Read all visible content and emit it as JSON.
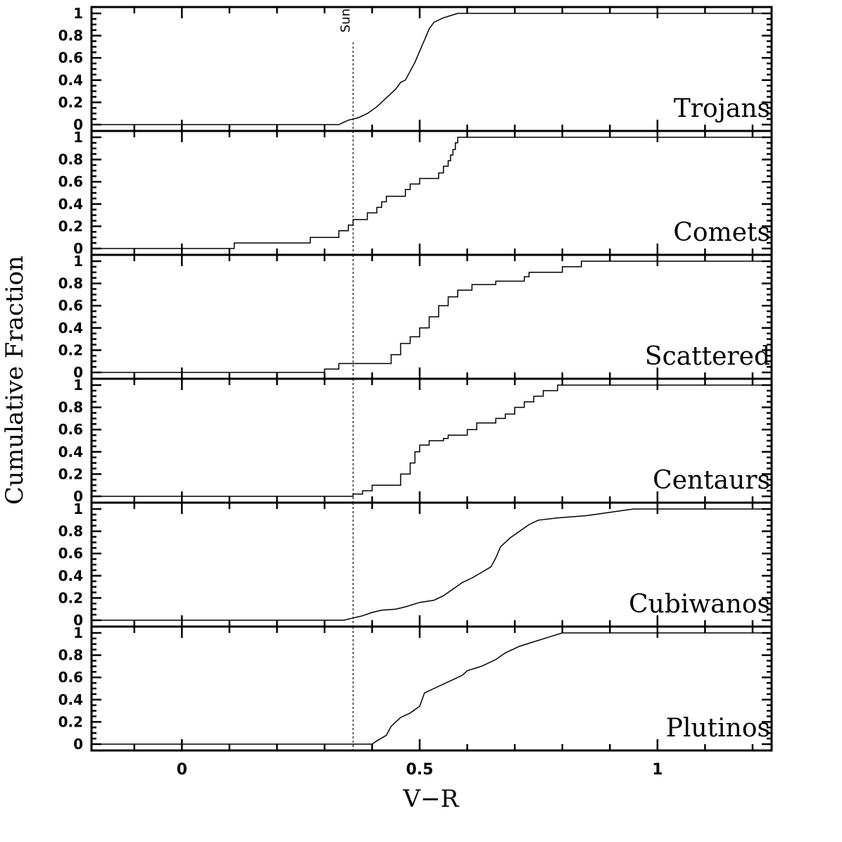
{
  "chart_data": {
    "type": "line",
    "step": true,
    "xlabel": "V−R",
    "ylabel": "Cumulative Fraction",
    "xlim": [
      -0.19,
      1.24
    ],
    "ylim": [
      0,
      1
    ],
    "x_ticks": [
      0,
      0.5,
      1
    ],
    "x_tick_labels": [
      "0",
      "0.5",
      "1"
    ],
    "y_ticks": [
      0,
      0.2,
      0.4,
      0.6,
      0.8,
      1
    ],
    "y_tick_labels": [
      "0",
      "0.2",
      "0.4",
      "0.6",
      "0.8",
      "1"
    ],
    "reference_line": {
      "x": 0.36,
      "label": "Sun",
      "style": "dotted"
    },
    "panels": [
      {
        "name": "Trojans",
        "points": [
          [
            -0.19,
            0
          ],
          [
            0.33,
            0
          ],
          [
            0.34,
            0.02
          ],
          [
            0.35,
            0.04
          ],
          [
            0.37,
            0.06
          ],
          [
            0.39,
            0.1
          ],
          [
            0.41,
            0.16
          ],
          [
            0.43,
            0.24
          ],
          [
            0.45,
            0.32
          ],
          [
            0.46,
            0.38
          ],
          [
            0.47,
            0.4
          ],
          [
            0.48,
            0.48
          ],
          [
            0.49,
            0.56
          ],
          [
            0.5,
            0.66
          ],
          [
            0.51,
            0.76
          ],
          [
            0.52,
            0.86
          ],
          [
            0.53,
            0.92
          ],
          [
            0.55,
            0.96
          ],
          [
            0.58,
            1.0
          ],
          [
            1.24,
            1.0
          ]
        ]
      },
      {
        "name": "Comets",
        "points": [
          [
            -0.19,
            0
          ],
          [
            0.11,
            0
          ],
          [
            0.11,
            0.05
          ],
          [
            0.27,
            0.05
          ],
          [
            0.27,
            0.1
          ],
          [
            0.33,
            0.1
          ],
          [
            0.33,
            0.16
          ],
          [
            0.35,
            0.16
          ],
          [
            0.35,
            0.21
          ],
          [
            0.36,
            0.21
          ],
          [
            0.36,
            0.26
          ],
          [
            0.39,
            0.26
          ],
          [
            0.39,
            0.32
          ],
          [
            0.41,
            0.32
          ],
          [
            0.41,
            0.37
          ],
          [
            0.42,
            0.37
          ],
          [
            0.42,
            0.42
          ],
          [
            0.43,
            0.42
          ],
          [
            0.43,
            0.47
          ],
          [
            0.47,
            0.47
          ],
          [
            0.47,
            0.53
          ],
          [
            0.48,
            0.53
          ],
          [
            0.48,
            0.58
          ],
          [
            0.5,
            0.58
          ],
          [
            0.5,
            0.63
          ],
          [
            0.54,
            0.63
          ],
          [
            0.54,
            0.68
          ],
          [
            0.55,
            0.68
          ],
          [
            0.55,
            0.74
          ],
          [
            0.56,
            0.74
          ],
          [
            0.56,
            0.79
          ],
          [
            0.565,
            0.79
          ],
          [
            0.565,
            0.84
          ],
          [
            0.57,
            0.84
          ],
          [
            0.57,
            0.89
          ],
          [
            0.575,
            0.89
          ],
          [
            0.575,
            0.95
          ],
          [
            0.58,
            0.95
          ],
          [
            0.58,
            1.0
          ],
          [
            1.24,
            1.0
          ]
        ]
      },
      {
        "name": "Scattered",
        "points": [
          [
            -0.19,
            0
          ],
          [
            0.3,
            0
          ],
          [
            0.3,
            0.03
          ],
          [
            0.33,
            0.03
          ],
          [
            0.33,
            0.08
          ],
          [
            0.44,
            0.08
          ],
          [
            0.44,
            0.16
          ],
          [
            0.46,
            0.16
          ],
          [
            0.46,
            0.26
          ],
          [
            0.48,
            0.26
          ],
          [
            0.48,
            0.32
          ],
          [
            0.5,
            0.32
          ],
          [
            0.5,
            0.4
          ],
          [
            0.52,
            0.4
          ],
          [
            0.52,
            0.5
          ],
          [
            0.54,
            0.5
          ],
          [
            0.54,
            0.6
          ],
          [
            0.56,
            0.6
          ],
          [
            0.56,
            0.68
          ],
          [
            0.58,
            0.68
          ],
          [
            0.58,
            0.74
          ],
          [
            0.61,
            0.74
          ],
          [
            0.61,
            0.79
          ],
          [
            0.66,
            0.79
          ],
          [
            0.66,
            0.82
          ],
          [
            0.72,
            0.82
          ],
          [
            0.72,
            0.86
          ],
          [
            0.73,
            0.86
          ],
          [
            0.73,
            0.9
          ],
          [
            0.8,
            0.9
          ],
          [
            0.8,
            0.95
          ],
          [
            0.84,
            0.95
          ],
          [
            0.84,
            1.0
          ],
          [
            1.24,
            1.0
          ]
        ]
      },
      {
        "name": "Centaurs",
        "points": [
          [
            -0.19,
            0
          ],
          [
            0.36,
            0
          ],
          [
            0.36,
            0.02
          ],
          [
            0.38,
            0.02
          ],
          [
            0.38,
            0.05
          ],
          [
            0.4,
            0.05
          ],
          [
            0.4,
            0.1
          ],
          [
            0.46,
            0.1
          ],
          [
            0.46,
            0.2
          ],
          [
            0.48,
            0.2
          ],
          [
            0.48,
            0.3
          ],
          [
            0.49,
            0.3
          ],
          [
            0.49,
            0.4
          ],
          [
            0.5,
            0.4
          ],
          [
            0.5,
            0.46
          ],
          [
            0.52,
            0.46
          ],
          [
            0.52,
            0.5
          ],
          [
            0.55,
            0.5
          ],
          [
            0.55,
            0.52
          ],
          [
            0.56,
            0.52
          ],
          [
            0.56,
            0.55
          ],
          [
            0.6,
            0.55
          ],
          [
            0.6,
            0.6
          ],
          [
            0.62,
            0.6
          ],
          [
            0.62,
            0.66
          ],
          [
            0.66,
            0.66
          ],
          [
            0.66,
            0.7
          ],
          [
            0.68,
            0.7
          ],
          [
            0.68,
            0.74
          ],
          [
            0.7,
            0.74
          ],
          [
            0.7,
            0.8
          ],
          [
            0.72,
            0.8
          ],
          [
            0.72,
            0.85
          ],
          [
            0.74,
            0.85
          ],
          [
            0.74,
            0.9
          ],
          [
            0.76,
            0.9
          ],
          [
            0.76,
            0.95
          ],
          [
            0.79,
            0.95
          ],
          [
            0.79,
            1.0
          ],
          [
            1.24,
            1.0
          ]
        ]
      },
      {
        "name": "Cubiwanos",
        "points": [
          [
            -0.19,
            0
          ],
          [
            0.34,
            0
          ],
          [
            0.36,
            0.02
          ],
          [
            0.38,
            0.04
          ],
          [
            0.4,
            0.07
          ],
          [
            0.42,
            0.09
          ],
          [
            0.45,
            0.1
          ],
          [
            0.47,
            0.12
          ],
          [
            0.5,
            0.16
          ],
          [
            0.53,
            0.18
          ],
          [
            0.55,
            0.22
          ],
          [
            0.57,
            0.28
          ],
          [
            0.59,
            0.34
          ],
          [
            0.61,
            0.38
          ],
          [
            0.63,
            0.43
          ],
          [
            0.65,
            0.48
          ],
          [
            0.66,
            0.56
          ],
          [
            0.67,
            0.66
          ],
          [
            0.69,
            0.74
          ],
          [
            0.71,
            0.8
          ],
          [
            0.73,
            0.86
          ],
          [
            0.75,
            0.9
          ],
          [
            0.79,
            0.92
          ],
          [
            0.85,
            0.94
          ],
          [
            0.9,
            0.97
          ],
          [
            0.95,
            1.0
          ],
          [
            1.24,
            1.0
          ]
        ]
      },
      {
        "name": "Plutinos",
        "points": [
          [
            -0.19,
            0
          ],
          [
            0.4,
            0
          ],
          [
            0.41,
            0.03
          ],
          [
            0.43,
            0.08
          ],
          [
            0.44,
            0.16
          ],
          [
            0.46,
            0.24
          ],
          [
            0.48,
            0.28
          ],
          [
            0.5,
            0.34
          ],
          [
            0.51,
            0.46
          ],
          [
            0.53,
            0.5
          ],
          [
            0.55,
            0.54
          ],
          [
            0.57,
            0.58
          ],
          [
            0.59,
            0.62
          ],
          [
            0.6,
            0.66
          ],
          [
            0.63,
            0.7
          ],
          [
            0.66,
            0.76
          ],
          [
            0.68,
            0.82
          ],
          [
            0.71,
            0.88
          ],
          [
            0.74,
            0.92
          ],
          [
            0.77,
            0.96
          ],
          [
            0.8,
            1.0
          ],
          [
            1.24,
            1.0
          ]
        ]
      }
    ]
  }
}
